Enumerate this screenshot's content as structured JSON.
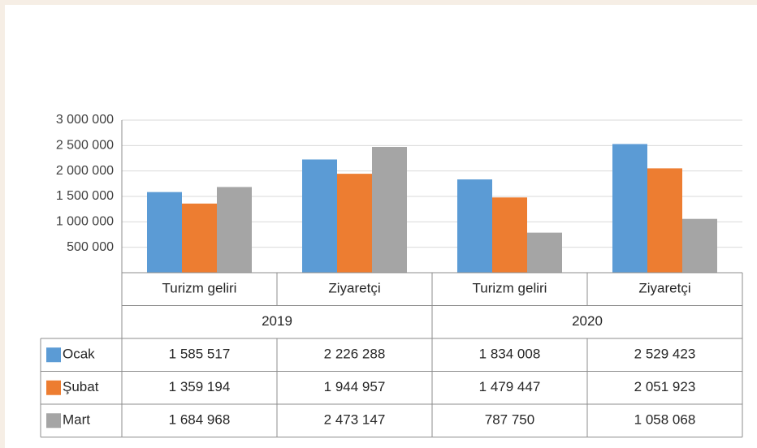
{
  "chart_data": {
    "type": "bar",
    "groups": [
      {
        "name": "2019",
        "categories": [
          "Turizm geliri",
          "Ziyaretçi"
        ]
      },
      {
        "name": "2020",
        "categories": [
          "Turizm geliri",
          "Ziyaretçi"
        ]
      }
    ],
    "series": [
      {
        "name": "Ocak",
        "color": "#5b9bd5",
        "values": [
          1585517,
          2226288,
          1834008,
          2529423
        ],
        "value_labels": [
          "1 585 517",
          "2 226 288",
          "1 834 008",
          "2 529 423"
        ]
      },
      {
        "name": "Şubat",
        "color": "#ed7d31",
        "values": [
          1359194,
          1944957,
          1479447,
          2051923
        ],
        "value_labels": [
          "1 359 194",
          "1 944 957",
          "1 479 447",
          "2 051 923"
        ]
      },
      {
        "name": "Mart",
        "color": "#a5a5a5",
        "values": [
          1684968,
          2473147,
          787750,
          1058068
        ],
        "value_labels": [
          "1 684 968",
          "2 473 147",
          "787 750",
          "1 058 068"
        ]
      }
    ],
    "ylim": [
      0,
      3000000
    ],
    "yticks": [
      {
        "value": 500000,
        "label": "500 000"
      },
      {
        "value": 1000000,
        "label": "1 000 000"
      },
      {
        "value": 1500000,
        "label": "1 500 000"
      },
      {
        "value": 2000000,
        "label": "2 000 000"
      },
      {
        "value": 2500000,
        "label": "2 500 000"
      },
      {
        "value": 3000000,
        "label": "3 000 000"
      }
    ],
    "grid": true
  }
}
